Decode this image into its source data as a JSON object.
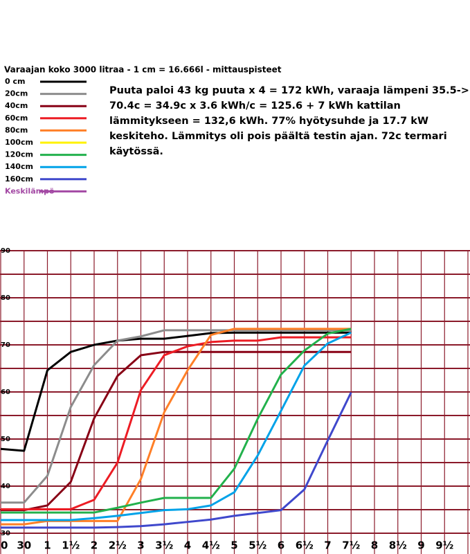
{
  "chart_data": {
    "type": "line",
    "title": "Varaajan koko 3000 litraa - 1 cm = 16.666l - mittauspisteet",
    "annotations": [
      "Puuta paloi 43 kg puuta x 4 = 172 kWh, varaaja lämpeni 35.5->",
      "70.4c = 34.9c x 3.6 kWh/c = 125.6 + 7 kWh kattilan",
      "lämmitykseen = 132,6 kWh. 77% hyötysuhde ja 17.7 kW",
      "keskiteho. Lämmitys oli pois päältä testin ajan. 72c termari",
      "käytössä."
    ],
    "categories": [
      "0",
      "30",
      "1",
      "1½",
      "2",
      "2½",
      "3",
      "3½",
      "4",
      "4½",
      "5",
      "5½",
      "6",
      "6½",
      "7",
      "7½",
      "8",
      "8½",
      "9",
      "9½"
    ],
    "ylim": [
      30,
      90
    ],
    "yticks": [
      30,
      40,
      50,
      60,
      70,
      80,
      90
    ],
    "grid": true,
    "grid_color": "#8b1a2a",
    "series": [
      {
        "name": "0 cm",
        "color": "#000000",
        "values": [
          47.9,
          47.5,
          64.6,
          68.5,
          70,
          70.9,
          71.3,
          71.3,
          71.9,
          72.5,
          72.6,
          72.6,
          72.6,
          72.6,
          72.6,
          72.6,
          null,
          null,
          null,
          null
        ]
      },
      {
        "name": "20cm",
        "color": "#8c8c8c",
        "values": [
          36.5,
          36.5,
          42.2,
          56.8,
          65.7,
          70.9,
          71.8,
          73.1,
          73.1,
          73.1,
          73.1,
          73.1,
          73.1,
          73.1,
          73.1,
          73.1,
          null,
          null,
          null,
          null
        ]
      },
      {
        "name": "40cm",
        "color": "#880015",
        "values": [
          34.9,
          34.9,
          35.9,
          40.9,
          54.4,
          63.4,
          67.8,
          68.5,
          68.5,
          68.5,
          68.5,
          68.5,
          68.5,
          68.5,
          68.5,
          68.5,
          null,
          null,
          null,
          null
        ]
      },
      {
        "name": "60cm",
        "color": "#ed1c24",
        "values": [
          35.1,
          35.1,
          35.1,
          35.1,
          37.1,
          45,
          60.4,
          67.8,
          69.7,
          70.6,
          70.9,
          70.9,
          71.6,
          71.6,
          71.6,
          71.6,
          null,
          null,
          null,
          null
        ]
      },
      {
        "name": "80cm",
        "color": "#ff7f27",
        "values": [
          31.9,
          31.9,
          32.6,
          32.6,
          32.6,
          32.6,
          41.5,
          55.7,
          64.6,
          72.1,
          73.4,
          73.4,
          73.4,
          73.4,
          73.4,
          73.4,
          null,
          null,
          null,
          null
        ]
      },
      {
        "name": "100cm",
        "color": "#fff200",
        "values": [
          null,
          null,
          null,
          null,
          null,
          null,
          null,
          null,
          null,
          null,
          null,
          null,
          null,
          null,
          null,
          null,
          null,
          null,
          null,
          null
        ]
      },
      {
        "name": "120cm",
        "color": "#22b14c",
        "values": [
          34.4,
          34.4,
          34.4,
          34.4,
          34.4,
          35.4,
          36.5,
          37.5,
          37.5,
          37.5,
          43.7,
          54.3,
          63.7,
          68.8,
          72.4,
          73.4,
          null,
          null,
          null,
          null
        ]
      },
      {
        "name": "140cm",
        "color": "#00a2e8",
        "values": [
          32.8,
          32.8,
          32.8,
          32.8,
          33.2,
          33.7,
          34.3,
          34.9,
          35.1,
          35.9,
          38.7,
          46.5,
          56,
          65.6,
          70.3,
          72.6,
          null,
          null,
          null,
          null
        ]
      },
      {
        "name": "160cm",
        "color": "#3f48cc",
        "values": [
          31.2,
          31.2,
          31.2,
          31.2,
          31.2,
          31.3,
          31.5,
          31.9,
          32.4,
          32.9,
          33.7,
          34.3,
          34.9,
          39.3,
          49.7,
          59.9,
          null,
          null,
          null,
          null
        ]
      },
      {
        "name": "Keskilämpö",
        "color": "#a349a4",
        "label_color": "#a349a4",
        "values": [
          null,
          null,
          null,
          null,
          null,
          null,
          null,
          null,
          null,
          null,
          null,
          null,
          null,
          null,
          null,
          null,
          null,
          null,
          null,
          null
        ]
      }
    ]
  }
}
